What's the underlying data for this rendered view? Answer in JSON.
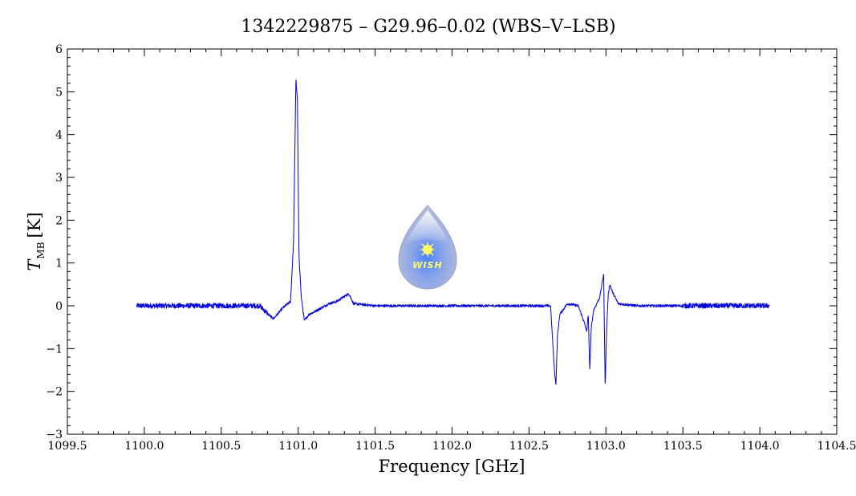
{
  "chart_data": {
    "type": "line",
    "title": "1342229875 – G29.96–0.02 (WBS–V–LSB)",
    "xlabel": "Frequency [GHz]",
    "ylabel_main": "T",
    "ylabel_sub": "MB",
    "ylabel_unit": "[K]",
    "xlim": [
      1099.5,
      1104.5
    ],
    "ylim": [
      -3,
      6
    ],
    "x_ticks": [
      1099.5,
      1100.0,
      1100.5,
      1101.0,
      1101.5,
      1102.0,
      1102.5,
      1103.0,
      1103.5,
      1104.0,
      1104.5
    ],
    "x_tick_labels": [
      "1099.5",
      "1100.0",
      "1100.5",
      "1101.0",
      "1101.5",
      "1102.0",
      "1102.5",
      "1103.0",
      "1103.5",
      "1104.0",
      "1104.5"
    ],
    "y_ticks": [
      -3,
      -2,
      -1,
      0,
      1,
      2,
      3,
      4,
      5,
      6
    ],
    "y_tick_labels": [
      "−3",
      "−2",
      "−1",
      "0",
      "1",
      "2",
      "3",
      "4",
      "5",
      "6"
    ],
    "grid": false,
    "line_color": "#0000dd",
    "series": [
      {
        "x": [
          1099.95,
          1100.2,
          1100.5,
          1100.75,
          1100.82,
          1100.84,
          1100.9,
          1100.95,
          1100.97,
          1100.985,
          1100.995,
          1101.005,
          1101.02,
          1101.04,
          1101.07,
          1101.1,
          1101.15,
          1101.2,
          1101.25,
          1101.3,
          1101.33,
          1101.36,
          1101.5,
          1101.8,
          1102.1,
          1102.4,
          1102.64,
          1102.665,
          1102.675,
          1102.685,
          1102.7,
          1102.75,
          1102.82,
          1102.86,
          1102.875,
          1102.885,
          1102.895,
          1102.905,
          1102.92,
          1102.96,
          1102.985,
          1102.995,
          1103.005,
          1103.015,
          1103.025,
          1103.045,
          1103.08,
          1103.2,
          1103.5,
          1103.8,
          1104.06
        ],
        "y": [
          0.0,
          0.0,
          0.0,
          0.0,
          -0.25,
          -0.3,
          -0.05,
          0.1,
          1.5,
          5.3,
          4.8,
          1.2,
          0.2,
          -0.35,
          -0.2,
          -0.15,
          -0.05,
          0.05,
          0.1,
          0.22,
          0.28,
          0.05,
          0.0,
          0.0,
          0.0,
          0.0,
          0.0,
          -1.5,
          -1.85,
          -0.7,
          -0.2,
          0.05,
          0.0,
          -0.4,
          -0.6,
          -0.2,
          -1.5,
          -0.5,
          -0.1,
          0.2,
          0.75,
          -1.9,
          -0.5,
          0.25,
          0.5,
          0.3,
          0.05,
          0.0,
          0.0,
          0.0,
          0.0
        ]
      }
    ]
  },
  "logo": {
    "text": "WISH"
  }
}
